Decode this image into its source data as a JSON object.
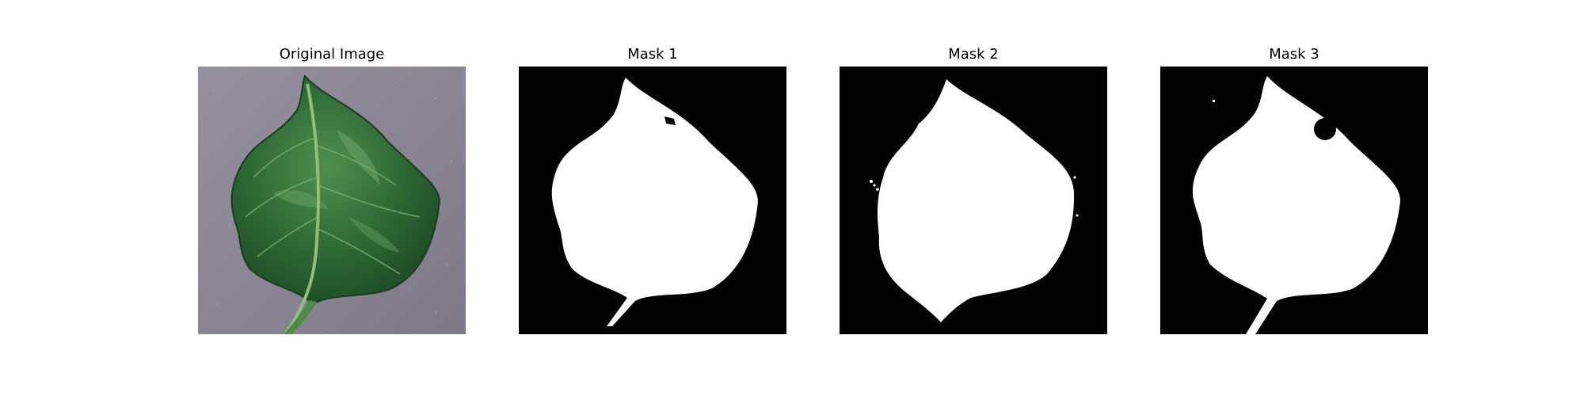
{
  "panels": [
    {
      "title": "Original Image",
      "kind": "photo",
      "subject": "leaf-photo"
    },
    {
      "title": "Mask 1",
      "kind": "mask",
      "subject": "leaf-mask"
    },
    {
      "title": "Mask 2",
      "kind": "mask",
      "subject": "leaf-mask"
    },
    {
      "title": "Mask 3",
      "kind": "mask",
      "subject": "leaf-mask"
    }
  ],
  "colors": {
    "background": "#ffffff",
    "mask_background": "#000000",
    "mask_foreground": "#ffffff",
    "photo_surface": "#8a8593",
    "leaf_green": "#2f6a35",
    "leaf_highlight": "#6fa66a"
  }
}
